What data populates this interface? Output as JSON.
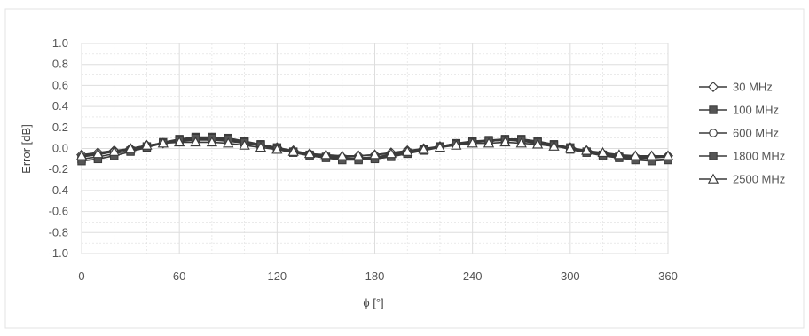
{
  "chart_data": {
    "type": "line",
    "xlabel": "ϕ [°]",
    "ylabel": "Error [dB]",
    "xlim": [
      0,
      360
    ],
    "ylim": [
      -1.0,
      1.0
    ],
    "x_ticks": [
      "0",
      "60",
      "120",
      "180",
      "240",
      "300",
      "360"
    ],
    "y_ticks": [
      "1.0",
      "0.8",
      "0.6",
      "0.4",
      "0.2",
      "0.0",
      "-0.2",
      "-0.4",
      "-0.6",
      "-0.8",
      "-1.0"
    ],
    "grid": true,
    "legend_position": "right",
    "x": [
      0,
      10,
      20,
      30,
      40,
      50,
      60,
      70,
      80,
      90,
      100,
      110,
      120,
      130,
      140,
      150,
      160,
      170,
      180,
      190,
      200,
      210,
      220,
      230,
      240,
      250,
      260,
      270,
      280,
      290,
      300,
      310,
      320,
      330,
      340,
      350,
      360
    ],
    "series": [
      {
        "name": "30 MHz",
        "marker": "diamond-open",
        "values": [
          -0.06,
          -0.04,
          -0.02,
          0.0,
          0.03,
          0.05,
          0.07,
          0.08,
          0.08,
          0.07,
          0.05,
          0.03,
          0.01,
          -0.02,
          -0.05,
          -0.07,
          -0.08,
          -0.07,
          -0.06,
          -0.04,
          -0.02,
          0.0,
          0.02,
          0.04,
          0.06,
          0.07,
          0.08,
          0.07,
          0.05,
          0.03,
          0.01,
          -0.02,
          -0.05,
          -0.07,
          -0.08,
          -0.08,
          -0.07
        ]
      },
      {
        "name": "100 MHz",
        "marker": "square-filled",
        "values": [
          -0.1,
          -0.08,
          -0.05,
          -0.02,
          0.02,
          0.06,
          0.09,
          0.11,
          0.11,
          0.1,
          0.07,
          0.04,
          0.01,
          -0.03,
          -0.06,
          -0.08,
          -0.1,
          -0.1,
          -0.09,
          -0.07,
          -0.04,
          -0.01,
          0.02,
          0.05,
          0.07,
          0.08,
          0.09,
          0.09,
          0.07,
          0.04,
          0.01,
          -0.03,
          -0.06,
          -0.08,
          -0.1,
          -0.11,
          -0.1
        ]
      },
      {
        "name": "600 MHz",
        "marker": "circle-open",
        "values": [
          -0.08,
          -0.06,
          -0.03,
          -0.01,
          0.02,
          0.05,
          0.07,
          0.09,
          0.09,
          0.08,
          0.06,
          0.03,
          0.0,
          -0.03,
          -0.06,
          -0.08,
          -0.09,
          -0.09,
          -0.08,
          -0.06,
          -0.03,
          -0.01,
          0.02,
          0.05,
          0.06,
          0.07,
          0.08,
          0.08,
          0.06,
          0.03,
          0.0,
          -0.03,
          -0.05,
          -0.07,
          -0.09,
          -0.09,
          -0.08
        ]
      },
      {
        "name": "1800 MHz",
        "marker": "square-filled",
        "values": [
          -0.12,
          -0.1,
          -0.07,
          -0.03,
          0.01,
          0.05,
          0.08,
          0.1,
          0.1,
          0.09,
          0.06,
          0.03,
          -0.01,
          -0.04,
          -0.07,
          -0.09,
          -0.11,
          -0.11,
          -0.1,
          -0.08,
          -0.05,
          -0.02,
          0.01,
          0.04,
          0.06,
          0.07,
          0.08,
          0.08,
          0.06,
          0.03,
          -0.01,
          -0.04,
          -0.07,
          -0.09,
          -0.11,
          -0.12,
          -0.11
        ]
      },
      {
        "name": "2500 MHz",
        "marker": "triangle-open",
        "values": [
          -0.07,
          -0.05,
          -0.03,
          0.0,
          0.03,
          0.05,
          0.06,
          0.06,
          0.06,
          0.05,
          0.03,
          0.01,
          -0.01,
          -0.03,
          -0.05,
          -0.06,
          -0.07,
          -0.07,
          -0.06,
          -0.05,
          -0.03,
          -0.01,
          0.01,
          0.03,
          0.05,
          0.05,
          0.06,
          0.05,
          0.04,
          0.02,
          0.0,
          -0.02,
          -0.04,
          -0.06,
          -0.07,
          -0.07,
          -0.07
        ]
      }
    ],
    "colors": {
      "line": "#3a3a3a",
      "grid": "#dddddd",
      "axis_text": "#555555"
    }
  }
}
